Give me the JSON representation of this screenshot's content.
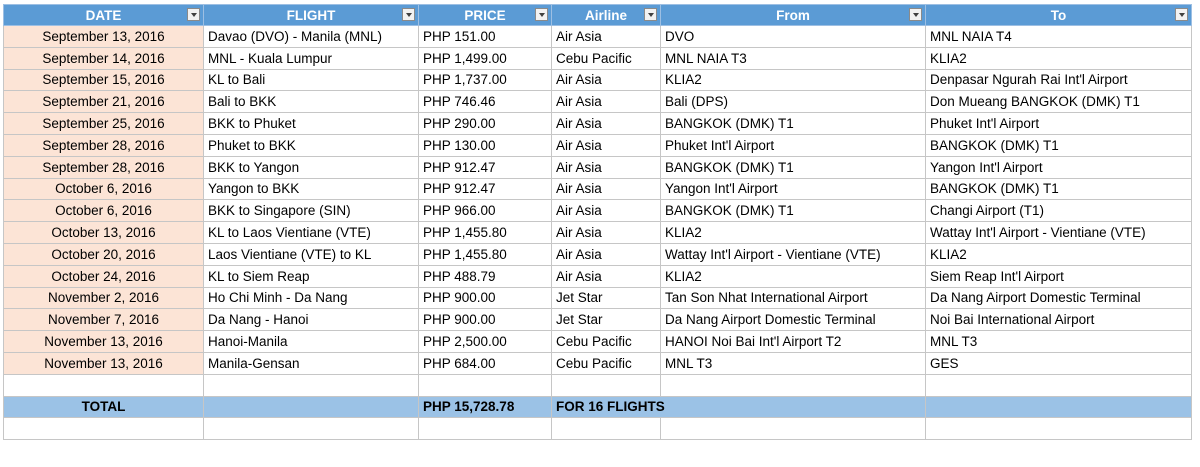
{
  "table": {
    "header": [
      "DATE",
      "FLIGHT",
      "PRICE",
      "Airline",
      "From",
      "To"
    ],
    "rows": [
      [
        "September 13, 2016",
        "Davao (DVO) - Manila (MNL)",
        "PHP 151.00",
        "Air Asia",
        "DVO",
        "MNL NAIA T4"
      ],
      [
        "September 14, 2016",
        "MNL - Kuala Lumpur",
        "PHP 1,499.00",
        "Cebu Pacific",
        "MNL NAIA T3",
        "KLIA2"
      ],
      [
        "September 15, 2016",
        "KL to Bali",
        "PHP 1,737.00",
        "Air Asia",
        "KLIA2",
        "Denpasar Ngurah Rai Int'l Airport"
      ],
      [
        "September 21, 2016",
        "Bali to BKK",
        "PHP 746.46",
        "Air Asia",
        "Bali (DPS)",
        "Don Mueang BANGKOK (DMK) T1"
      ],
      [
        "September 25, 2016",
        "BKK to Phuket",
        "PHP 290.00",
        "Air Asia",
        "BANGKOK (DMK) T1",
        "Phuket Int'l Airport"
      ],
      [
        "September 28, 2016",
        "Phuket to BKK",
        "PHP 130.00",
        "Air Asia",
        "Phuket Int'l Airport",
        "BANGKOK (DMK) T1"
      ],
      [
        "September 28, 2016",
        "BKK to Yangon",
        "PHP 912.47",
        "Air Asia",
        "BANGKOK (DMK) T1",
        "Yangon Int'l Airport"
      ],
      [
        "October 6, 2016",
        "Yangon to BKK",
        "PHP 912.47",
        "Air Asia",
        "Yangon Int'l Airport",
        "BANGKOK (DMK) T1"
      ],
      [
        "October 6, 2016",
        "BKK to Singapore (SIN)",
        "PHP 966.00",
        "Air Asia",
        "BANGKOK (DMK) T1",
        "Changi Airport (T1)"
      ],
      [
        "October 13, 2016",
        "KL to Laos Vientiane (VTE)",
        "PHP 1,455.80",
        "Air Asia",
        "KLIA2",
        "Wattay Int'l Airport - Vientiane (VTE)"
      ],
      [
        "October 20, 2016",
        "Laos Vientiane (VTE) to KL",
        "PHP 1,455.80",
        "Air Asia",
        "Wattay Int'l Airport - Vientiane (VTE)",
        "KLIA2"
      ],
      [
        "October 24, 2016",
        "KL to Siem Reap",
        "PHP 488.79",
        "Air Asia",
        "KLIA2",
        "Siem Reap Int'l Airport"
      ],
      [
        "November 2, 2016",
        "Ho Chi Minh - Da Nang",
        "PHP 900.00",
        "Jet Star",
        "Tan Son Nhat International Airport",
        "Da Nang Airport Domestic Terminal"
      ],
      [
        "November 7, 2016",
        "Da Nang - Hanoi",
        "PHP 900.00",
        "Jet Star",
        "Da Nang Airport Domestic Terminal",
        "Noi Bai International Airport"
      ],
      [
        "November 13, 2016",
        "Hanoi-Manila",
        "PHP 2,500.00",
        "Cebu Pacific",
        "HANOI Noi Bai Int'l Airport T2",
        "MNL T3"
      ],
      [
        "November 13, 2016",
        "Manila-Gensan",
        "PHP 684.00",
        "Cebu Pacific",
        "MNL T3",
        "GES"
      ]
    ],
    "total": {
      "label": "TOTAL",
      "price": "PHP 15,728.78",
      "note": "FOR 16 FLIGHTS"
    }
  }
}
